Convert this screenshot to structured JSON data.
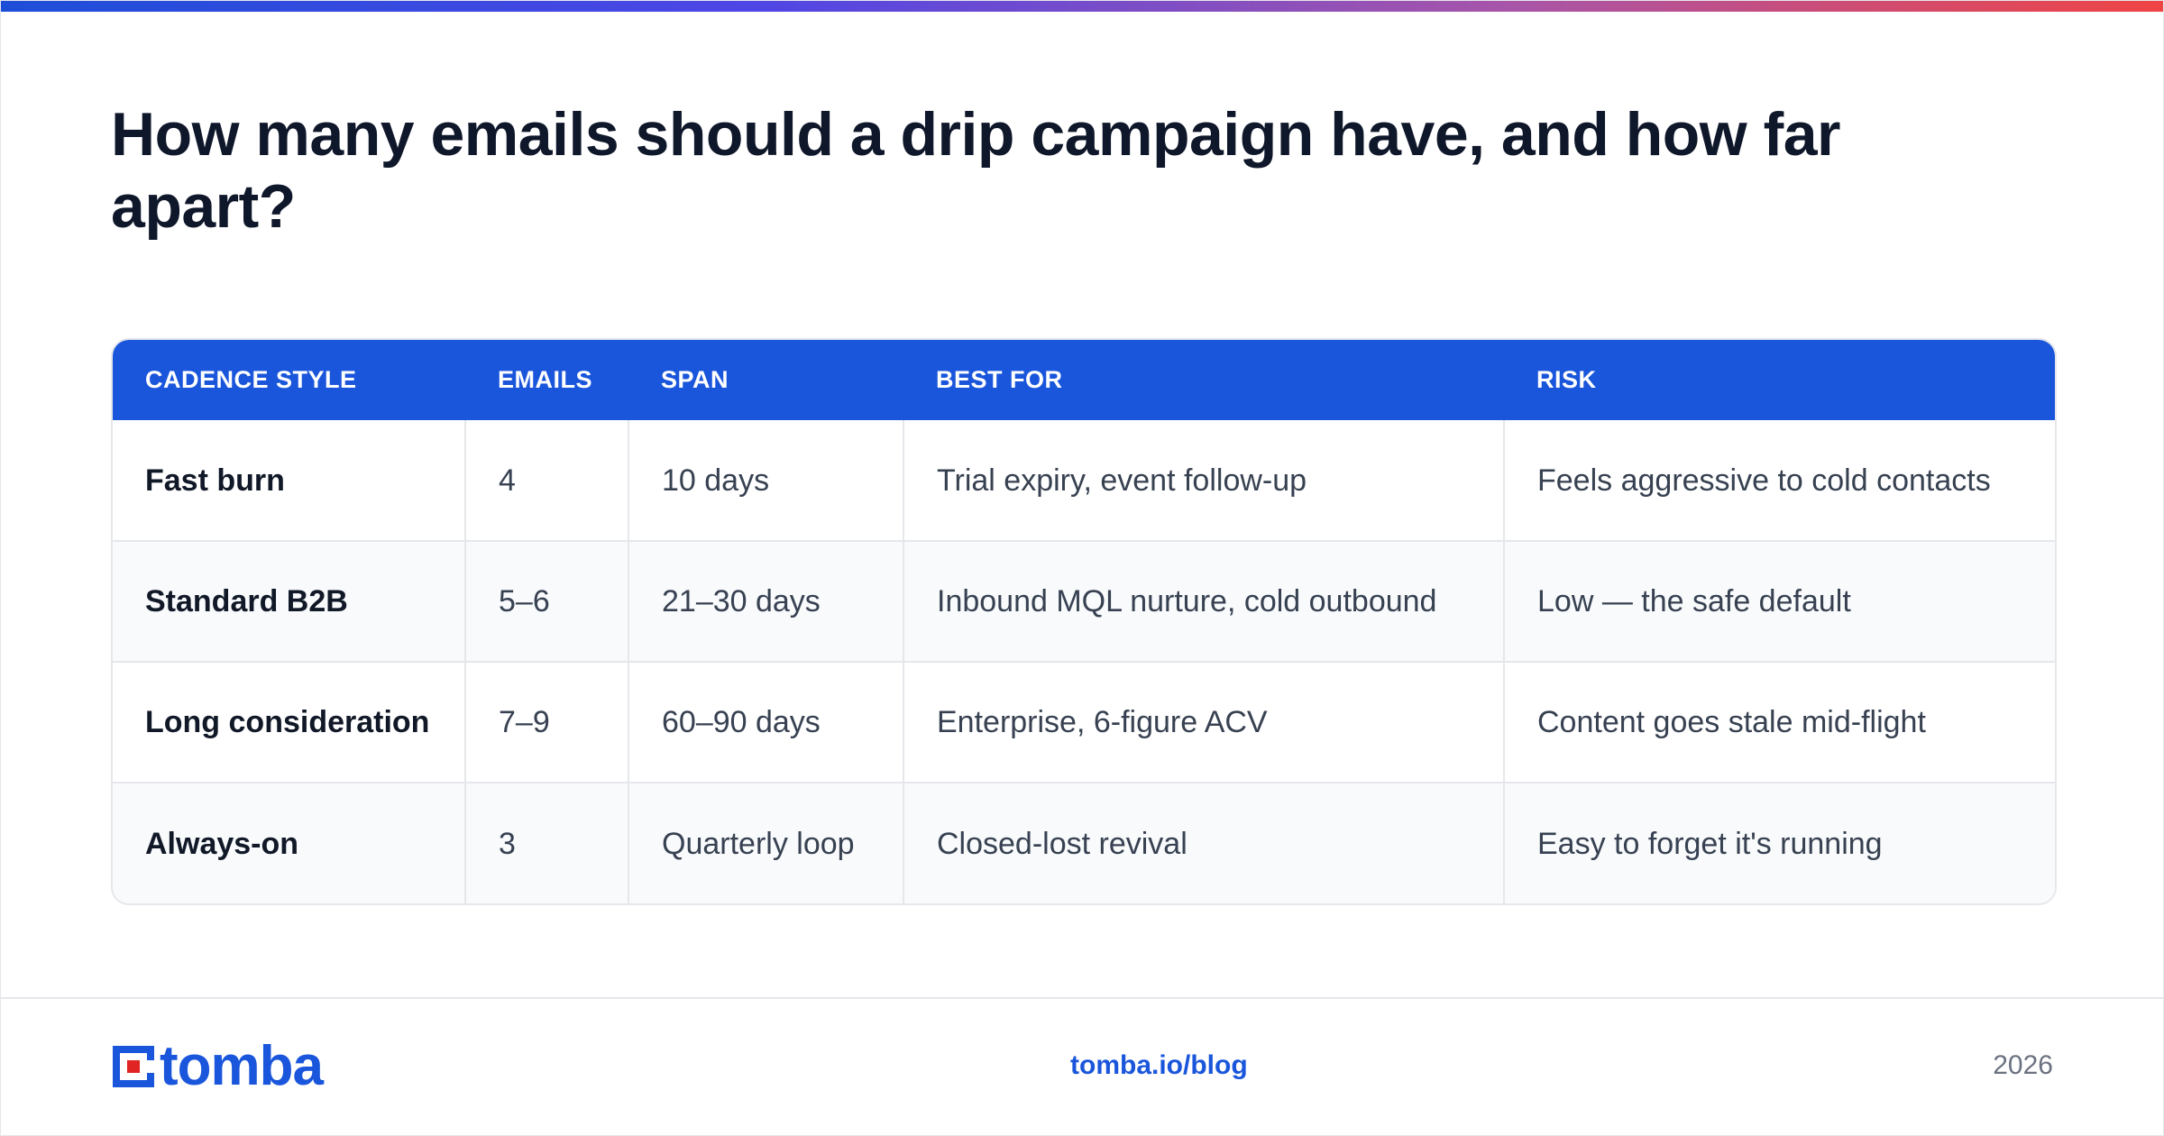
{
  "colors": {
    "accent": "#1a56db",
    "title": "#0f172a",
    "muted": "#6b7280",
    "logo_square_red": "#e02424"
  },
  "title": "How many emails should a drip campaign have, and how far apart?",
  "table": {
    "headers": [
      "CADENCE STYLE",
      "EMAILS",
      "SPAN",
      "BEST FOR",
      "RISK"
    ],
    "rows": [
      [
        "Fast burn",
        "4",
        "10 days",
        "Trial expiry, event follow-up",
        "Feels aggressive to cold contacts"
      ],
      [
        "Standard B2B",
        "5–6",
        "21–30 days",
        "Inbound MQL nurture, cold outbound",
        "Low — the safe default"
      ],
      [
        "Long consideration",
        "7–9",
        "60–90 days",
        "Enterprise, 6-figure ACV",
        "Content goes stale mid-flight"
      ],
      [
        "Always-on",
        "3",
        "Quarterly loop",
        "Closed-lost revival",
        "Easy to forget it's running"
      ]
    ]
  },
  "footer": {
    "logo_icon": "tomba-logo-icon",
    "logo_text": "tomba",
    "link": "tomba.io/blog",
    "year": "2026"
  }
}
